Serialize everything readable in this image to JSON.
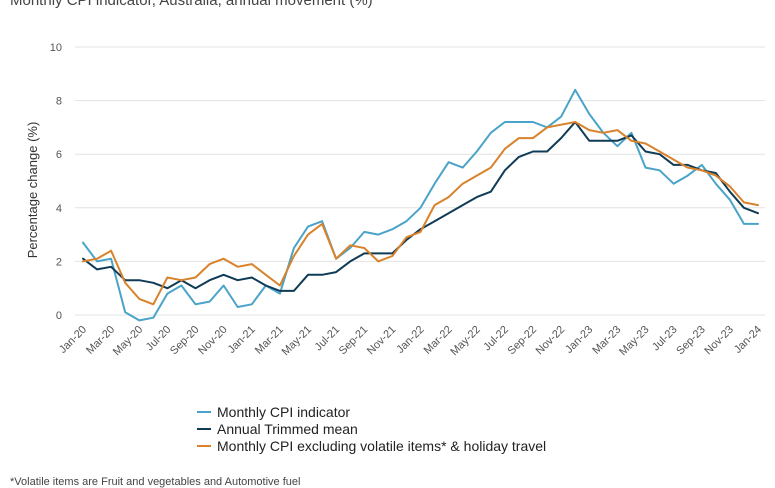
{
  "chart_data": {
    "type": "line",
    "title": "Monthly CPI indicator, Australia, annual movement (%)",
    "ylabel": "Percentage change (%)",
    "xlabel": "",
    "ylim": [
      0,
      10
    ],
    "yticks": [
      0,
      2,
      4,
      6,
      8,
      10
    ],
    "grid": true,
    "legend_position": "bottom",
    "x": [
      "Jan-20",
      "Feb-20",
      "Mar-20",
      "Apr-20",
      "May-20",
      "Jun-20",
      "Jul-20",
      "Aug-20",
      "Sep-20",
      "Oct-20",
      "Nov-20",
      "Dec-20",
      "Jan-21",
      "Feb-21",
      "Mar-21",
      "Apr-21",
      "May-21",
      "Jun-21",
      "Jul-21",
      "Aug-21",
      "Sep-21",
      "Oct-21",
      "Nov-21",
      "Dec-21",
      "Jan-22",
      "Feb-22",
      "Mar-22",
      "Apr-22",
      "May-22",
      "Jun-22",
      "Jul-22",
      "Aug-22",
      "Sep-22",
      "Oct-22",
      "Nov-22",
      "Dec-22",
      "Jan-23",
      "Feb-23",
      "Mar-23",
      "Apr-23",
      "May-23",
      "Jun-23",
      "Jul-23",
      "Aug-23",
      "Sep-23",
      "Oct-23",
      "Nov-23",
      "Dec-23",
      "Jan-24"
    ],
    "xtick_labels": [
      "Jan-20",
      "Mar-20",
      "May-20",
      "Jul-20",
      "Sep-20",
      "Nov-20",
      "Jan-21",
      "Mar-21",
      "May-21",
      "Jul-21",
      "Sep-21",
      "Nov-21",
      "Jan-22",
      "Mar-22",
      "May-22",
      "Jul-22",
      "Sep-22",
      "Nov-22",
      "Jan-23",
      "Mar-23",
      "May-23",
      "Jul-23",
      "Sep-23",
      "Nov-23",
      "Jan-24"
    ],
    "series": [
      {
        "name": "Monthly CPI indicator",
        "color": "#4aa3c8",
        "values": [
          2.7,
          2.0,
          2.1,
          0.1,
          -0.2,
          -0.1,
          0.8,
          1.1,
          0.4,
          0.5,
          1.1,
          0.3,
          0.4,
          1.1,
          0.8,
          2.5,
          3.3,
          3.5,
          2.1,
          2.5,
          3.1,
          3.0,
          3.2,
          3.5,
          4.0,
          4.9,
          5.7,
          5.5,
          6.1,
          6.8,
          7.2,
          7.2,
          7.2,
          7.0,
          7.4,
          8.4,
          7.5,
          6.8,
          6.3,
          6.8,
          5.5,
          5.4,
          4.9,
          5.2,
          5.6,
          4.9,
          4.3,
          3.4,
          3.4
        ]
      },
      {
        "name": "Annual Trimmed mean",
        "color": "#0f3b56",
        "values": [
          2.1,
          1.7,
          1.8,
          1.3,
          1.3,
          1.2,
          1.0,
          1.3,
          1.0,
          1.3,
          1.5,
          1.3,
          1.4,
          1.1,
          0.9,
          0.9,
          1.5,
          1.5,
          1.6,
          2.0,
          2.3,
          2.3,
          2.3,
          2.8,
          3.2,
          3.5,
          3.8,
          4.1,
          4.4,
          4.6,
          5.4,
          5.9,
          6.1,
          6.1,
          6.6,
          7.2,
          6.5,
          6.5,
          6.5,
          6.7,
          6.1,
          6.0,
          5.6,
          5.6,
          5.4,
          5.3,
          4.6,
          4.0,
          3.8
        ]
      },
      {
        "name": "Monthly CPI excluding volatile items* & holiday travel",
        "color": "#d9822b",
        "values": [
          2.0,
          2.1,
          2.4,
          1.2,
          0.6,
          0.4,
          1.4,
          1.3,
          1.4,
          1.9,
          2.1,
          1.8,
          1.9,
          1.5,
          1.1,
          2.2,
          3.0,
          3.4,
          2.1,
          2.6,
          2.5,
          2.0,
          2.2,
          2.9,
          3.1,
          4.1,
          4.4,
          4.9,
          5.2,
          5.5,
          6.2,
          6.6,
          6.6,
          7.0,
          7.1,
          7.2,
          6.9,
          6.8,
          6.9,
          6.5,
          6.4,
          6.1,
          5.8,
          5.5,
          5.4,
          5.2,
          4.8,
          4.2,
          4.1
        ]
      }
    ],
    "footnote": "*Volatile items are Fruit and vegetables and Automotive fuel"
  }
}
